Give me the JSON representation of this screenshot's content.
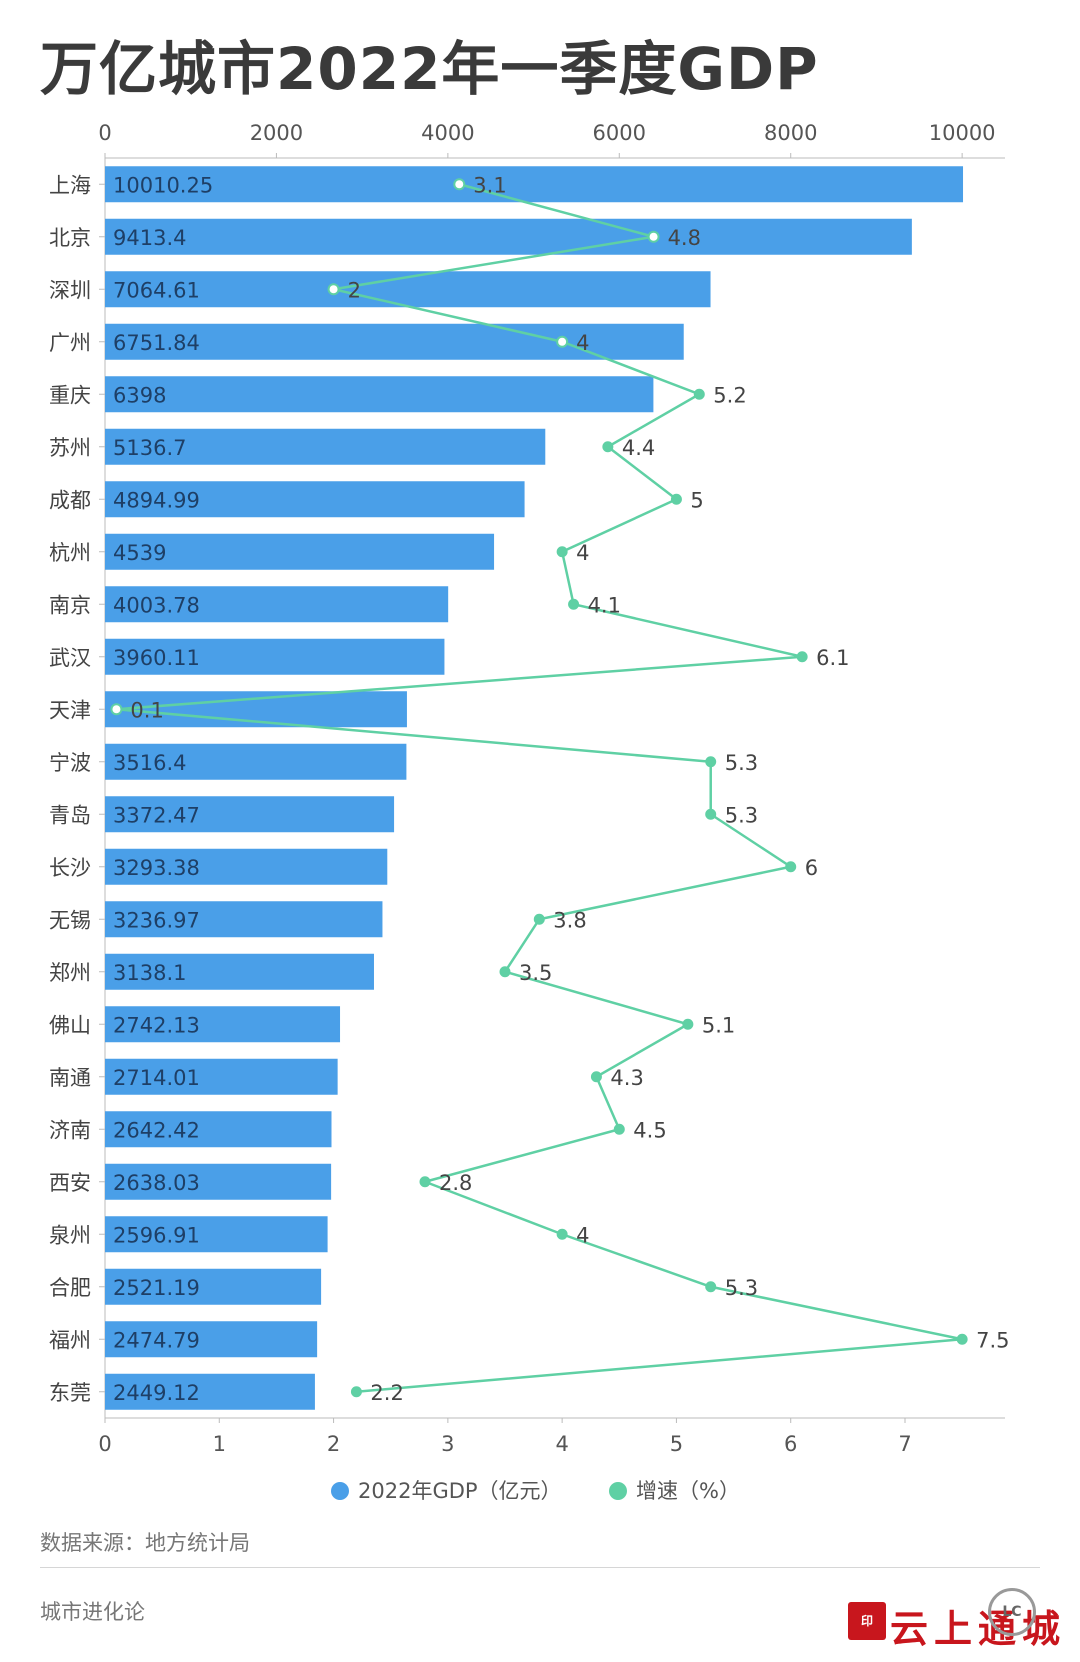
{
  "title": "万亿城市2022年一季度GDP",
  "source_text": "数据来源：地方统计局",
  "brand_text": "城市进化论",
  "stamp_text": "云上通城",
  "colors": {
    "bar": "#4a9fe8",
    "line": "#5fd0a4",
    "axis": "#bbbbbb"
  },
  "chart_data": {
    "type": "bar",
    "orientation": "horizontal",
    "categories": [
      "上海",
      "北京",
      "深圳",
      "广州",
      "重庆",
      "苏州",
      "成都",
      "杭州",
      "南京",
      "武汉",
      "天津",
      "宁波",
      "青岛",
      "长沙",
      "无锡",
      "郑州",
      "佛山",
      "南通",
      "济南",
      "西安",
      "泉州",
      "合肥",
      "福州",
      "东莞"
    ],
    "series": [
      {
        "name": "2022年GDP（亿元）",
        "type": "bar",
        "axis": "top",
        "values": [
          10010.25,
          9413.4,
          7064.61,
          6751.84,
          6398,
          5136.7,
          4894.99,
          4539,
          4003.78,
          3960.11,
          3522.7,
          3516.4,
          3372.47,
          3293.38,
          3236.97,
          3138.1,
          2742.13,
          2714.01,
          2642.42,
          2638.03,
          2596.91,
          2521.19,
          2474.79,
          2449.12
        ],
        "labels": [
          "10010.25",
          "9413.4",
          "7064.61",
          "6751.84",
          "6398",
          "5136.7",
          "4894.99",
          "4539",
          "4003.78",
          "3960.11",
          "",
          "3516.4",
          "3372.47",
          "3293.38",
          "3236.97",
          "3138.1",
          "2742.13",
          "2714.01",
          "2642.42",
          "2638.03",
          "2596.91",
          "2521.19",
          "2474.79",
          "2449.12"
        ]
      },
      {
        "name": "增速（%）",
        "type": "line",
        "axis": "bottom",
        "values": [
          3.1,
          4.8,
          2,
          4,
          5.2,
          4.4,
          5,
          4,
          4.1,
          6.1,
          0.1,
          5.3,
          5.3,
          6,
          3.8,
          3.5,
          5.1,
          4.3,
          4.5,
          2.8,
          4,
          5.3,
          7.5,
          2.2
        ],
        "labels": [
          "3.1",
          "4.8",
          "2",
          "4",
          "5.2",
          "4.4",
          "5",
          "4",
          "4.1",
          "6.1",
          "0.1",
          "5.3",
          "5.3",
          "6",
          "3.8",
          "3.5",
          "5.1",
          "4.3",
          "4.5",
          "2.8",
          "4",
          "5.3",
          "7.5",
          "2.2"
        ]
      }
    ],
    "top_axis": {
      "ticks": [
        "0",
        "2000",
        "4000",
        "6000",
        "8000",
        "10000"
      ],
      "range": [
        0,
        10500
      ]
    },
    "bottom_axis": {
      "ticks": [
        "0",
        "1",
        "2",
        "3",
        "4",
        "5",
        "6",
        "7"
      ],
      "range": [
        0,
        7.875
      ]
    },
    "legend_position": "bottom"
  }
}
